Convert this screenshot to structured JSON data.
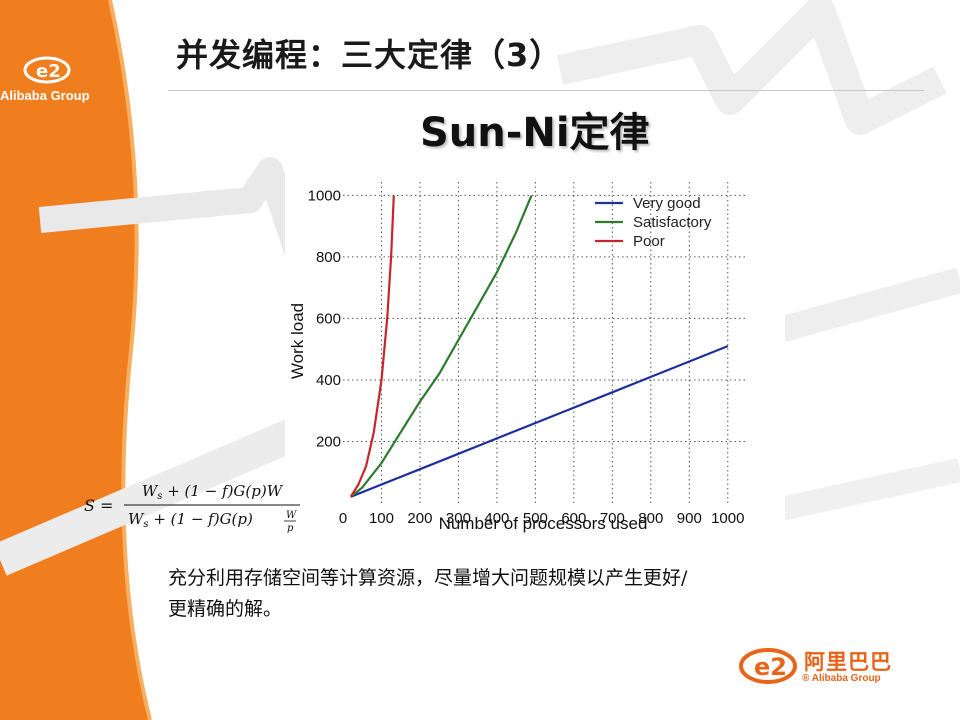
{
  "slide": {
    "title": "并发编程：三大定律（3）",
    "subtitle": "Sun-Ni定律",
    "logo_top_text": "Alibaba Group",
    "logo_bottom_cn": "阿里巴巴",
    "logo_bottom_en": "® Alibaba Group",
    "accent_color": "#f07e1e",
    "body_lines": [
      "充分利用存储空间等计算资源，尽量增大问题规模以产生更好/",
      "更精确的解。"
    ]
  },
  "formula": {
    "lhs": "S =",
    "numerator": "Ws + (1 − f)G(p)W",
    "denominator": "Ws + (1 − f)G(p)W/p"
  },
  "chart_data": {
    "type": "line",
    "title": "",
    "xlabel": "Number of processors used",
    "ylabel": "Work load",
    "xlim": [
      0,
      1050
    ],
    "ylim": [
      0,
      1050
    ],
    "xticks": [
      0,
      100,
      200,
      300,
      400,
      500,
      600,
      700,
      800,
      900,
      1000
    ],
    "yticks": [
      200,
      400,
      600,
      800,
      1000
    ],
    "grid": true,
    "legend_position": "top-right",
    "series": [
      {
        "name": "Very good",
        "color": "#1f2f9e",
        "points": [
          [
            20,
            20
          ],
          [
            100,
            60
          ],
          [
            200,
            110
          ],
          [
            300,
            160
          ],
          [
            400,
            210
          ],
          [
            500,
            260
          ],
          [
            600,
            310
          ],
          [
            700,
            360
          ],
          [
            800,
            410
          ],
          [
            900,
            460
          ],
          [
            1000,
            510
          ]
        ]
      },
      {
        "name": "Satisfactory",
        "color": "#2e7a2e",
        "points": [
          [
            20,
            20
          ],
          [
            50,
            50
          ],
          [
            100,
            130
          ],
          [
            150,
            230
          ],
          [
            200,
            330
          ],
          [
            250,
            420
          ],
          [
            300,
            530
          ],
          [
            350,
            640
          ],
          [
            400,
            750
          ],
          [
            450,
            880
          ],
          [
            490,
            1000
          ]
        ]
      },
      {
        "name": "Poor",
        "color": "#c4262b",
        "points": [
          [
            20,
            20
          ],
          [
            40,
            60
          ],
          [
            60,
            120
          ],
          [
            80,
            230
          ],
          [
            100,
            400
          ],
          [
            115,
            600
          ],
          [
            125,
            800
          ],
          [
            132,
            1000
          ]
        ]
      }
    ]
  }
}
